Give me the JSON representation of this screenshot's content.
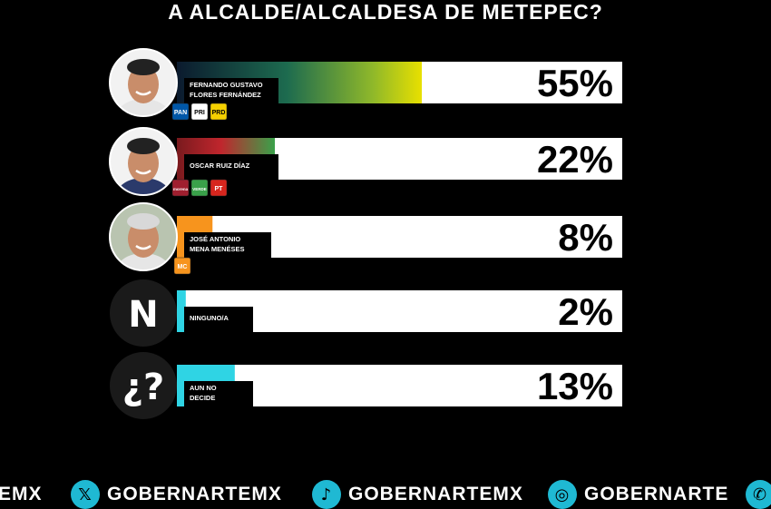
{
  "title": "A ALCALDE/ALCALDESA DE METEPEC?",
  "chart_data": {
    "type": "bar",
    "orientation": "horizontal",
    "xlim": [
      0,
      100
    ],
    "categories": [
      "FERNANDO GUSTAVO FLORES FERNÁNDEZ",
      "OSCAR RUIZ DÍAZ",
      "JOSÉ ANTONIO MENA MENÉSES",
      "NINGUNO/A",
      "AUN NO DECIDE"
    ],
    "values": [
      55,
      22,
      8,
      2,
      13
    ],
    "value_labels": [
      "55%",
      "22%",
      "8%",
      "2%",
      "13%"
    ]
  },
  "rows": [
    {
      "name_lines": [
        "FERNANDO GUSTAVO",
        "FLORES FERNÁNDEZ"
      ],
      "avatar": "photo",
      "badges": [
        "PAN",
        "PRI",
        "PRD"
      ],
      "fill": "green-yellow-gradient"
    },
    {
      "name_lines": [
        "OSCAR RUIZ DÍAZ"
      ],
      "avatar": "photo",
      "badges": [
        "morena",
        "PVEM",
        "PT"
      ],
      "fill": "red-green-gradient"
    },
    {
      "name_lines": [
        "JOSÉ ANTONIO",
        "MENA MENÉSES"
      ],
      "avatar": "photo",
      "badges": [
        "MC"
      ],
      "fill": "orange"
    },
    {
      "name_lines": [
        "NINGUNO/A"
      ],
      "avatar": "N",
      "badges": [],
      "fill": "cyan"
    },
    {
      "name_lines": [
        "AUN NO",
        "DECIDE"
      ],
      "avatar": "¿?",
      "badges": [],
      "fill": "cyan"
    }
  ],
  "colors": {
    "background": "#000000",
    "track": "#ffffff",
    "cyan": "#2fd4e4",
    "orange": "#f7941d",
    "yellow": "#e8e000",
    "green": "#2e8b57",
    "red": "#c0262d"
  },
  "footer": {
    "left_partial": "EMX",
    "x_handle": "GOBERNARTEMX",
    "tiktok_handle": "GOBERNARTEMX",
    "instagram_handle": "GOBERNARTE",
    "icons": [
      "x-icon",
      "tiktok-icon",
      "instagram-icon",
      "whatsapp-icon"
    ]
  }
}
